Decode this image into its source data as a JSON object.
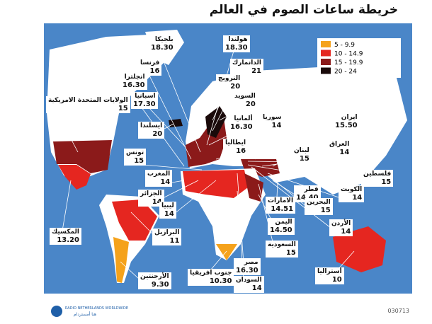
{
  "header": {
    "title": "خريطة ساعات الصوم في العالم"
  },
  "legend": [
    {
      "label": "5 - 9.9",
      "color": "#f5a21b"
    },
    {
      "label": "10 - 14.9",
      "color": "#e52620"
    },
    {
      "label": "15 - 19.9",
      "color": "#8b1a1a"
    },
    {
      "label": "20 - 24",
      "color": "#1a0a0a"
    }
  ],
  "labels": [
    {
      "name": "بلجيكا",
      "hours": "18.30"
    },
    {
      "name": "هولندا",
      "hours": "18.30"
    },
    {
      "name": "فرنسا",
      "hours": "16"
    },
    {
      "name": "الدانمارك",
      "hours": "21"
    },
    {
      "name": "انجلترا",
      "hours": "16.30"
    },
    {
      "name": "النرويج",
      "hours": "20"
    },
    {
      "name": "اسبانيا",
      "hours": "17.30"
    },
    {
      "name": "السويد",
      "hours": "20"
    },
    {
      "name": "الولايات المتحدة الامريكية",
      "hours": "15"
    },
    {
      "name": "ايسلندا",
      "hours": "20"
    },
    {
      "name": "ألمانيا",
      "hours": "16.30"
    },
    {
      "name": "سوريا",
      "hours": "14"
    },
    {
      "name": "ايران",
      "hours": "15.50"
    },
    {
      "name": "ايطاليا",
      "hours": "16"
    },
    {
      "name": "تونس",
      "hours": "15"
    },
    {
      "name": "لبنان",
      "hours": "15"
    },
    {
      "name": "العراق",
      "hours": "14"
    },
    {
      "name": "المغرب",
      "hours": "14"
    },
    {
      "name": "فلسطين",
      "hours": "15"
    },
    {
      "name": "الجزائر",
      "hours": "14"
    },
    {
      "name": "قطر",
      "hours": "14.40"
    },
    {
      "name": "الكويت",
      "hours": "14"
    },
    {
      "name": "ليبيا",
      "hours": "14"
    },
    {
      "name": "الامارات",
      "hours": "14.51"
    },
    {
      "name": "البحرين",
      "hours": "15"
    },
    {
      "name": "المكسيك",
      "hours": "13.20"
    },
    {
      "name": "البرازيل",
      "hours": "11"
    },
    {
      "name": "اليمن",
      "hours": "14.50"
    },
    {
      "name": "الأردن",
      "hours": "14"
    },
    {
      "name": "السعودية",
      "hours": "15"
    },
    {
      "name": "مصر",
      "hours": "16.30"
    },
    {
      "name": "الأرجنتين",
      "hours": "9.30"
    },
    {
      "name": "جنوب افريقيا",
      "hours": "10.30"
    },
    {
      "name": "أستراليا",
      "hours": "10"
    },
    {
      "name": "السودان",
      "hours": "14"
    }
  ],
  "footer": {
    "logo_en": "RADIO NETHERLANDS WORLDWIDE",
    "logo_ar": "هنا أمستردام",
    "code": "030713"
  }
}
